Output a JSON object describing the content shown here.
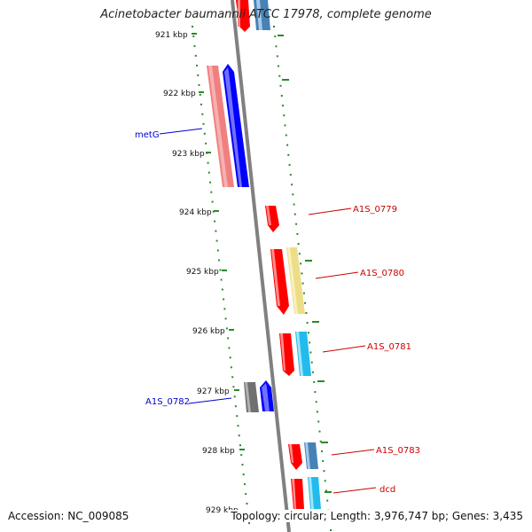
{
  "title": "Acinetobacter baumannii ATCC 17978, complete genome",
  "footer": {
    "accession": "Accession: NC_009085",
    "summary": "Topology: circular; Length: 3,976,747 bp; Genes: 3,435"
  },
  "ruler": {
    "ticks": [
      "921 kbp",
      "922 kbp",
      "923 kbp",
      "924 kbp",
      "925 kbp",
      "926 kbp",
      "927 kbp",
      "928 kbp",
      "929 kbp"
    ]
  },
  "gene_labels": [
    {
      "name": "metG",
      "color": "#0000cc",
      "side": "left"
    },
    {
      "name": "A1S_0779",
      "color": "#cc0000",
      "side": "right"
    },
    {
      "name": "A1S_0780",
      "color": "#cc0000",
      "side": "right"
    },
    {
      "name": "A1S_0781",
      "color": "#cc0000",
      "side": "right"
    },
    {
      "name": "A1S_0782",
      "color": "#0000cc",
      "side": "left"
    },
    {
      "name": "A1S_0783",
      "color": "#cc0000",
      "side": "right"
    },
    {
      "name": "dcd",
      "color": "#cc0000",
      "side": "right"
    }
  ],
  "colors": {
    "backbone": "#808080",
    "dots": "#2a8a2a",
    "forward_gene": "#ff0000",
    "reverse_gene": "#0000ff",
    "rna_pink": "#f08080",
    "feature_yellow": "#eedd88",
    "feature_cyan": "#22bbee",
    "feature_steel": "#4682b4",
    "feature_gray": "#707070"
  }
}
